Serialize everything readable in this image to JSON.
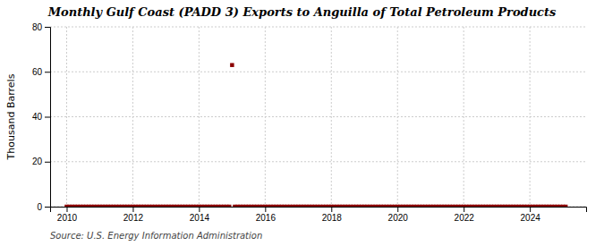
{
  "chart_data": {
    "type": "scatter",
    "title": "Monthly Gulf Coast (PADD 3) Exports to Anguilla of Total Petroleum Products",
    "ylabel": "Thousand Barrels",
    "annotations": [
      "Source: U.S. Energy Information Administration"
    ],
    "color": "#8b0000",
    "marker": "square",
    "grid": true,
    "xlim": [
      2009.5,
      2025.7
    ],
    "ylim": [
      0,
      80
    ],
    "xticks": [
      2010,
      2012,
      2014,
      2016,
      2018,
      2020,
      2022,
      2024
    ],
    "yticks": [
      0,
      20,
      40,
      60,
      80
    ],
    "x": [
      2010.0,
      2010.083,
      2010.167,
      2010.25,
      2010.333,
      2010.417,
      2010.5,
      2010.583,
      2010.667,
      2010.75,
      2010.833,
      2010.917,
      2011.0,
      2011.083,
      2011.167,
      2011.25,
      2011.333,
      2011.417,
      2011.5,
      2011.583,
      2011.667,
      2011.75,
      2011.833,
      2011.917,
      2012.0,
      2012.083,
      2012.167,
      2012.25,
      2012.333,
      2012.417,
      2012.5,
      2012.583,
      2012.667,
      2012.75,
      2012.833,
      2012.917,
      2013.0,
      2013.083,
      2013.167,
      2013.25,
      2013.333,
      2013.417,
      2013.5,
      2013.583,
      2013.667,
      2013.75,
      2013.833,
      2013.917,
      2014.0,
      2014.083,
      2014.167,
      2014.25,
      2014.333,
      2014.417,
      2014.5,
      2014.583,
      2014.667,
      2014.75,
      2014.833,
      2014.917,
      2015.0,
      2015.083,
      2015.167,
      2015.25,
      2015.333,
      2015.417,
      2015.5,
      2015.583,
      2015.667,
      2015.75,
      2015.833,
      2015.917,
      2016.0,
      2016.083,
      2016.167,
      2016.25,
      2016.333,
      2016.417,
      2016.5,
      2016.583,
      2016.667,
      2016.75,
      2016.833,
      2016.917,
      2017.0,
      2017.083,
      2017.167,
      2017.25,
      2017.333,
      2017.417,
      2017.5,
      2017.583,
      2017.667,
      2017.75,
      2017.833,
      2017.917,
      2018.0,
      2018.083,
      2018.167,
      2018.25,
      2018.333,
      2018.417,
      2018.5,
      2018.583,
      2018.667,
      2018.75,
      2018.833,
      2018.917,
      2019.0,
      2019.083,
      2019.167,
      2019.25,
      2019.333,
      2019.417,
      2019.5,
      2019.583,
      2019.667,
      2019.75,
      2019.833,
      2019.917,
      2020.0,
      2020.083,
      2020.167,
      2020.25,
      2020.333,
      2020.417,
      2020.5,
      2020.583,
      2020.667,
      2020.75,
      2020.833,
      2020.917,
      2021.0,
      2021.083,
      2021.167,
      2021.25,
      2021.333,
      2021.417,
      2021.5,
      2021.583,
      2021.667,
      2021.75,
      2021.833,
      2021.917,
      2022.0,
      2022.083,
      2022.167,
      2022.25,
      2022.333,
      2022.417,
      2022.5,
      2022.583,
      2022.667,
      2022.75,
      2022.833,
      2022.917,
      2023.0,
      2023.083,
      2023.167,
      2023.25,
      2023.333,
      2023.417,
      2023.5,
      2023.583,
      2023.667,
      2023.75,
      2023.833,
      2023.917,
      2024.0,
      2024.083,
      2024.167,
      2024.25,
      2024.333,
      2024.417,
      2024.5,
      2024.583,
      2024.667,
      2024.75,
      2024.833,
      2024.917,
      2025.0,
      2025.083
    ],
    "values": [
      0,
      0,
      0,
      0,
      0,
      0,
      0,
      0,
      0,
      0,
      0,
      0,
      0,
      0,
      0,
      0,
      0,
      0,
      0,
      0,
      0,
      0,
      0,
      0,
      0,
      0,
      0,
      0,
      0,
      0,
      0,
      0,
      0,
      0,
      0,
      0,
      0,
      0,
      0,
      0,
      0,
      0,
      0,
      0,
      0,
      0,
      0,
      0,
      0,
      0,
      0,
      0,
      0,
      0,
      0,
      0,
      0,
      0,
      0,
      0,
      63,
      0,
      0,
      0,
      0,
      0,
      0,
      0,
      0,
      0,
      0,
      0,
      0,
      0,
      0,
      0,
      0,
      0,
      0,
      0,
      0,
      0,
      0,
      0,
      0,
      0,
      0,
      0,
      0,
      0,
      0,
      0,
      0,
      0,
      0,
      0,
      0,
      0,
      0,
      0,
      0,
      0,
      0,
      0,
      0,
      0,
      0,
      0,
      0,
      0,
      0,
      0,
      0,
      0,
      0,
      0,
      0,
      0,
      0,
      0,
      0,
      0,
      0,
      0,
      0,
      0,
      0,
      0,
      0,
      0,
      0,
      0,
      0,
      0,
      0,
      0,
      0,
      0,
      0,
      0,
      0,
      0,
      0,
      0,
      0,
      0,
      0,
      0,
      0,
      0,
      0,
      0,
      0,
      0,
      0,
      0,
      0,
      0,
      0,
      0,
      0,
      0,
      0,
      0,
      0,
      0,
      0,
      0,
      0,
      0,
      0,
      0,
      0,
      0,
      0,
      0,
      0,
      0,
      0,
      0,
      0,
      0
    ]
  }
}
